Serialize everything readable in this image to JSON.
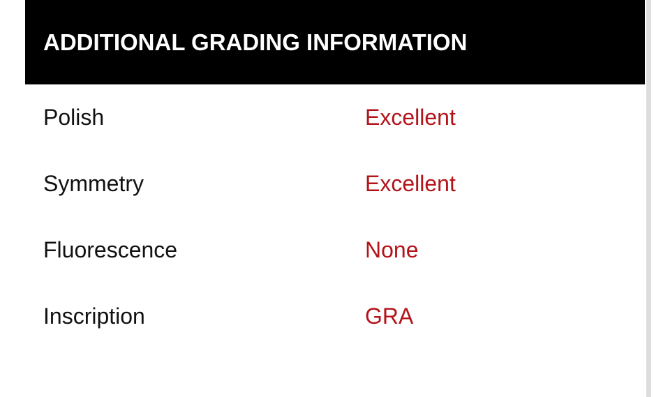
{
  "header": {
    "title": "ADDITIONAL GRADING INFORMATION"
  },
  "table": {
    "rows": [
      [
        "Polish",
        "Excellent"
      ],
      [
        "Symmetry",
        "Excellent"
      ],
      [
        "Fluorescence",
        "None"
      ],
      [
        "Inscription",
        "GRA"
      ]
    ]
  }
}
